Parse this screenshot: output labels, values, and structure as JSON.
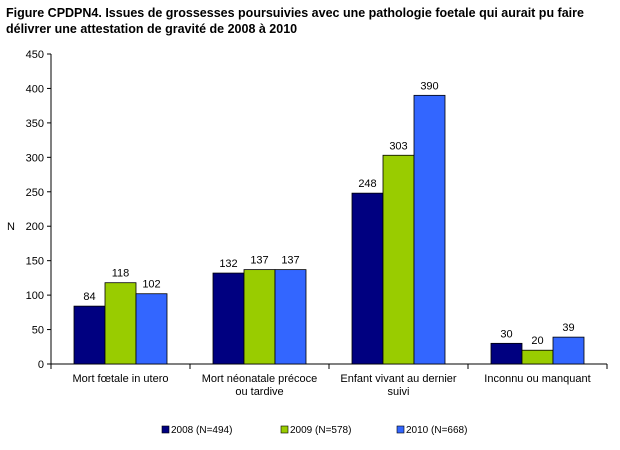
{
  "chart_data": {
    "type": "bar",
    "title": "Figure CPDPN4. Issues de grossesses poursuivies avec une pathologie foetale qui aurait pu faire délivrer une attestation de gravité de 2008 à 2010",
    "ylabel": "N",
    "xlabel": "",
    "ylim": [
      0,
      450
    ],
    "yticks": [
      0,
      50,
      100,
      150,
      200,
      250,
      300,
      350,
      400,
      450
    ],
    "grid": false,
    "legend_position": "bottom",
    "categories": [
      [
        "Mort fœtale in utero"
      ],
      [
        "Mort néonatale précoce",
        "ou tardive"
      ],
      [
        "Enfant vivant au dernier",
        "suivi"
      ],
      [
        "Inconnu ou manquant"
      ]
    ],
    "series": [
      {
        "name": "2008 (N=494)",
        "color": "#000080",
        "values": [
          84,
          132,
          248,
          30
        ]
      },
      {
        "name": "2009 (N=578)",
        "color": "#99CC00",
        "values": [
          118,
          137,
          303,
          20
        ]
      },
      {
        "name": "2010 (N=668)",
        "color": "#3366FF",
        "values": [
          102,
          137,
          390,
          39
        ]
      }
    ]
  }
}
